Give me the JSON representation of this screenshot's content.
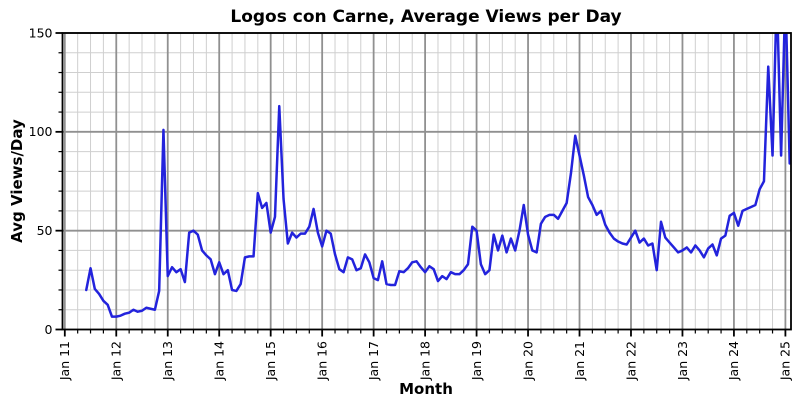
{
  "chart_data": {
    "type": "line",
    "title": "Logos con Carne, Average Views per Day",
    "xlabel": "Month",
    "ylabel": "Avg Views/Day",
    "ylim": [
      0,
      150
    ],
    "y_major_ticks": [
      0,
      50,
      100,
      150
    ],
    "y_minor_tick_step": 10,
    "x_major_tick_labels": [
      "Jan 11",
      "Jan 12",
      "Jan 13",
      "Jan 14",
      "Jan 15",
      "Jan 16",
      "Jan 17",
      "Jan 18",
      "Jan 19",
      "Jan 20",
      "Jan 21",
      "Jan 22",
      "Jan 23",
      "Jan 24",
      "Jan 25"
    ],
    "x_minor_tick_interval_months": 3,
    "grid": "major and minor, gray on white",
    "legend": "none",
    "clipping_note": "values above 150 are clipped at the top axis border",
    "series": [
      {
        "name": "avg-views-per-day",
        "color": "#2323dc",
        "line_width": 2.5,
        "cadence": "monthly",
        "start_month": "2011-06",
        "end_month": "2025-02",
        "values": [
          20,
          31,
          20.5,
          18,
          14.5,
          12.5,
          6.5,
          6.5,
          7,
          8,
          8.5,
          10,
          9,
          9.5,
          11,
          10.5,
          10,
          19.5,
          101,
          27,
          31.5,
          29,
          30.5,
          24,
          49,
          50,
          48,
          40,
          37.5,
          35.5,
          28,
          34,
          28,
          30,
          20,
          19.5,
          23,
          36.5,
          37,
          37,
          69,
          61.5,
          64,
          49,
          57,
          113,
          66,
          43.5,
          49,
          46.5,
          48.5,
          48.5,
          52,
          61,
          49,
          42,
          50,
          48.5,
          38,
          30.5,
          29,
          36.5,
          35.5,
          30,
          31,
          38,
          34,
          26,
          25,
          34.5,
          23,
          22.5,
          22.5,
          29.5,
          29,
          31,
          34,
          34.5,
          31.5,
          29,
          32,
          30.5,
          24.5,
          27,
          25.5,
          29,
          28,
          28,
          30,
          33,
          52,
          50,
          33,
          28,
          30,
          48,
          40,
          47.5,
          39,
          46,
          40,
          50,
          63,
          48,
          40,
          39,
          53.5,
          57,
          58,
          58,
          56,
          60,
          64,
          79,
          98,
          88,
          78,
          67,
          63,
          58,
          60,
          53,
          49,
          46,
          44.5,
          43.5,
          43,
          46.5,
          50,
          44,
          46,
          42.5,
          43.5,
          30,
          54.5,
          46.5,
          44,
          41.5,
          39,
          40,
          41.5,
          39,
          42.5,
          40,
          36.5,
          41,
          43,
          37.5,
          46,
          47.5,
          57.5,
          59,
          52.5,
          60,
          61,
          62,
          63,
          71,
          75,
          133,
          88,
          170,
          88,
          170,
          84
        ]
      }
    ],
    "colors": {
      "line": "#2323dc",
      "major_grid": "#909090",
      "minor_grid": "#cfcfcf",
      "spine": "#000000",
      "background": "#ffffff"
    }
  }
}
